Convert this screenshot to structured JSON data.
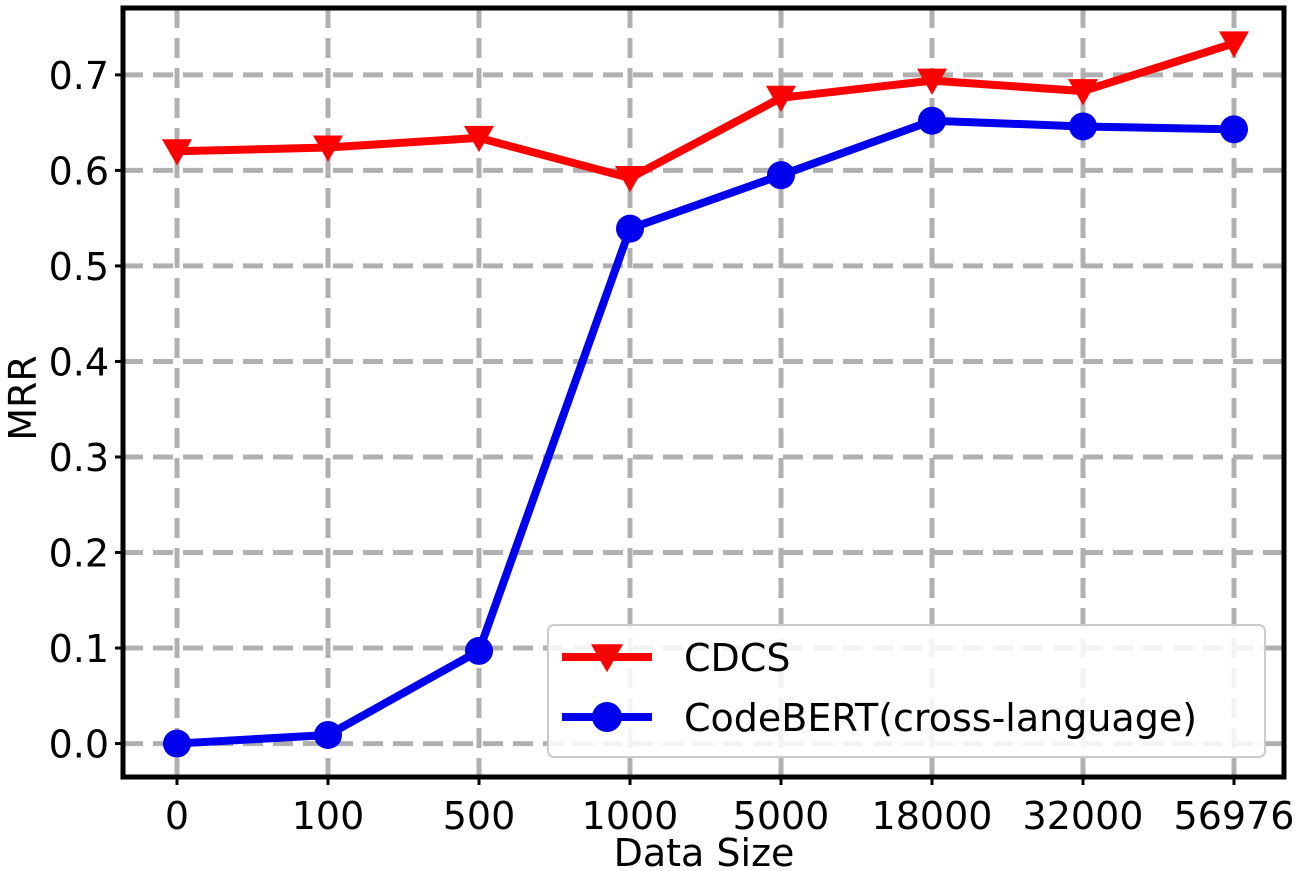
{
  "chart_data": {
    "type": "line",
    "title": "",
    "xlabel": "Data Size",
    "ylabel": "MRR",
    "categories": [
      "0",
      "100",
      "500",
      "1000",
      "5000",
      "18000",
      "32000",
      "56976"
    ],
    "yticks": [
      "0.0",
      "0.1",
      "0.2",
      "0.3",
      "0.4",
      "0.5",
      "0.6",
      "0.7"
    ],
    "ylim": [
      -0.035,
      0.77
    ],
    "grid": true,
    "legend_position": "lower-right",
    "series": [
      {
        "name": "CDCS",
        "color": "#ff0000",
        "marker": "triangle-down",
        "values": [
          0.62,
          0.624,
          0.634,
          0.592,
          0.676,
          0.694,
          0.683,
          0.733
        ]
      },
      {
        "name": "CodeBERT(cross-language)",
        "color": "#0000ee",
        "marker": "circle",
        "values": [
          0.0,
          0.009,
          0.097,
          0.539,
          0.595,
          0.652,
          0.646,
          0.643
        ]
      }
    ],
    "colors": {
      "grid": "#b0b0b0",
      "frame": "#000000"
    }
  }
}
